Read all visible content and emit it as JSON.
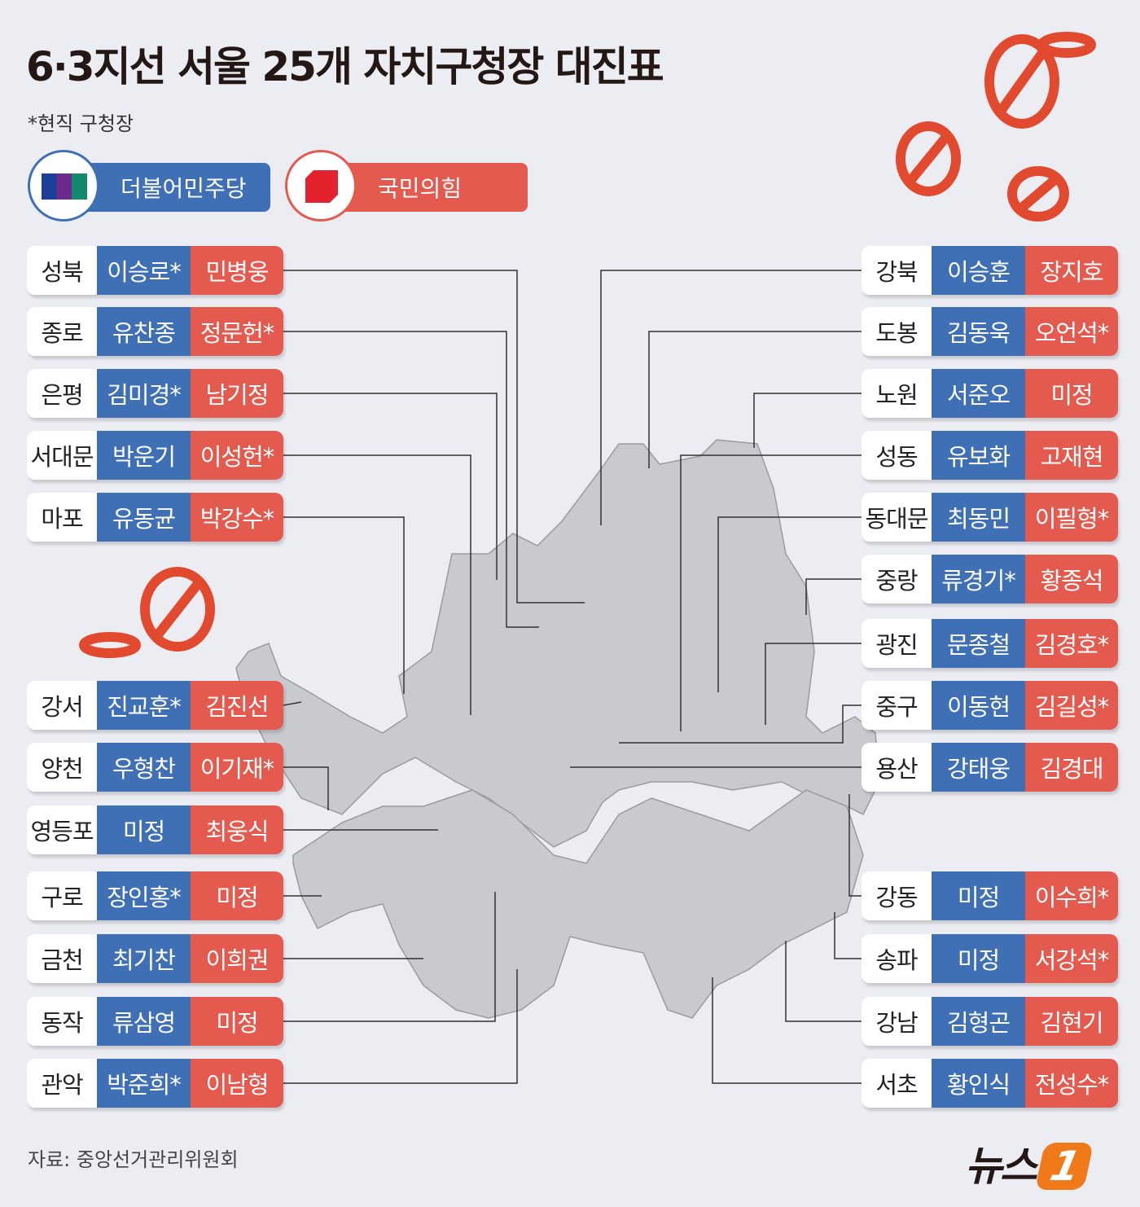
{
  "title": "6·3지선 서울 25개 자치구청장 대진표",
  "note": "*현직 구청장",
  "legend": {
    "democratic": "더불어민주당",
    "ppp": "국민의힘"
  },
  "colors": {
    "democratic": "#3f6fb5",
    "ppp": "#e55a4e"
  },
  "left": [
    {
      "district": "성북",
      "dem": "이승로*",
      "ppp": "민병웅"
    },
    {
      "district": "종로",
      "dem": "유찬종",
      "ppp": "정문헌*"
    },
    {
      "district": "은평",
      "dem": "김미경*",
      "ppp": "남기정"
    },
    {
      "district": "서대문",
      "dem": "박운기",
      "ppp": "이성헌*"
    },
    {
      "district": "마포",
      "dem": "유동균",
      "ppp": "박강수*"
    },
    {
      "district": "강서",
      "dem": "진교훈*",
      "ppp": "김진선"
    },
    {
      "district": "양천",
      "dem": "우형찬",
      "ppp": "이기재*"
    },
    {
      "district": "영등포",
      "dem": "미정",
      "ppp": "최웅식"
    },
    {
      "district": "구로",
      "dem": "장인홍*",
      "ppp": "미정"
    },
    {
      "district": "금천",
      "dem": "최기찬",
      "ppp": "이희권"
    },
    {
      "district": "동작",
      "dem": "류삼영",
      "ppp": "미정"
    },
    {
      "district": "관악",
      "dem": "박준희*",
      "ppp": "이남형"
    }
  ],
  "right": [
    {
      "district": "강북",
      "dem": "이승훈",
      "ppp": "장지호"
    },
    {
      "district": "도봉",
      "dem": "김동욱",
      "ppp": "오언석*"
    },
    {
      "district": "노원",
      "dem": "서준오",
      "ppp": "미정"
    },
    {
      "district": "성동",
      "dem": "유보화",
      "ppp": "고재현"
    },
    {
      "district": "동대문",
      "dem": "최동민",
      "ppp": "이필형*"
    },
    {
      "district": "중랑",
      "dem": "류경기*",
      "ppp": "황종석"
    },
    {
      "district": "광진",
      "dem": "문종철",
      "ppp": "김경호*"
    },
    {
      "district": "중구",
      "dem": "이동현",
      "ppp": "김길성*"
    },
    {
      "district": "용산",
      "dem": "강태웅",
      "ppp": "김경대"
    },
    {
      "district": "강동",
      "dem": "미정",
      "ppp": "이수희*"
    },
    {
      "district": "송파",
      "dem": "미정",
      "ppp": "서강석*"
    },
    {
      "district": "강남",
      "dem": "김형곤",
      "ppp": "김현기"
    },
    {
      "district": "서초",
      "dem": "황인식",
      "ppp": "전성수*"
    }
  ],
  "source": "자료: 중앙선거관리위원회",
  "logo": {
    "text": "뉴스",
    "mark": "1"
  }
}
